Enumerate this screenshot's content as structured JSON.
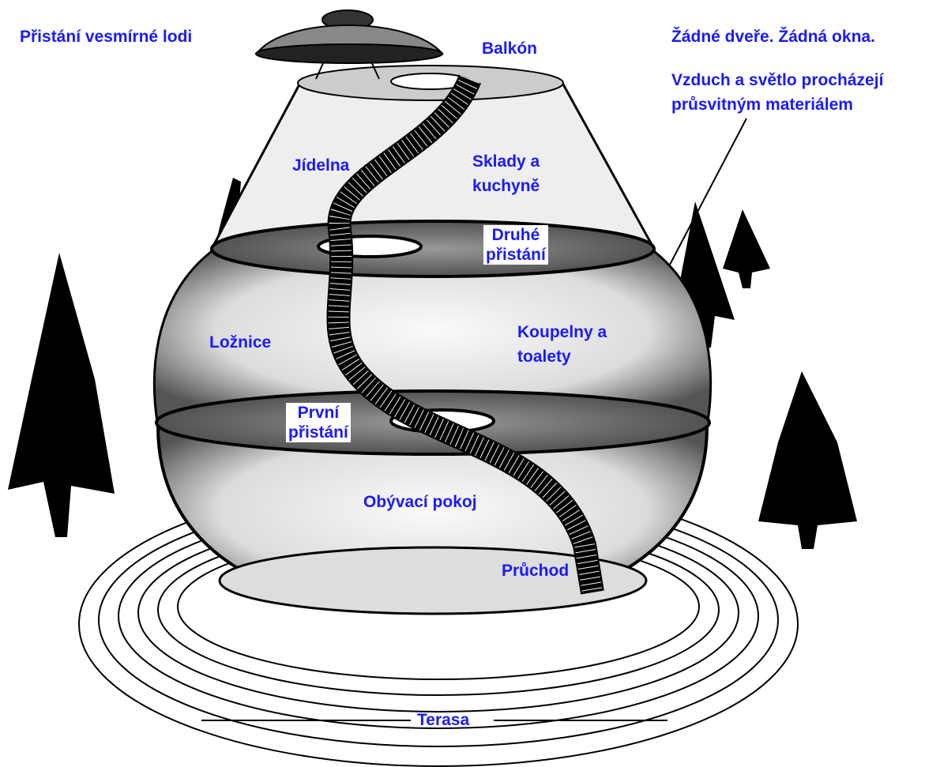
{
  "labels": [
    "Přistání vesmírné lodi",
    "Balkón",
    "Žádné dveře. Žádná okna.",
    [
      "Vzduch a světlo procházejí",
      "průsvitným materiálem"
    ],
    "Jídelna",
    [
      "Sklady a",
      "kuchyně"
    ],
    [
      "Druhé",
      "přistání"
    ],
    "Ložnice",
    [
      "Koupelny a",
      "toalety"
    ],
    [
      "První",
      "přistání"
    ],
    "Obývací pokoj",
    "Průchod",
    "Terasa"
  ]
}
